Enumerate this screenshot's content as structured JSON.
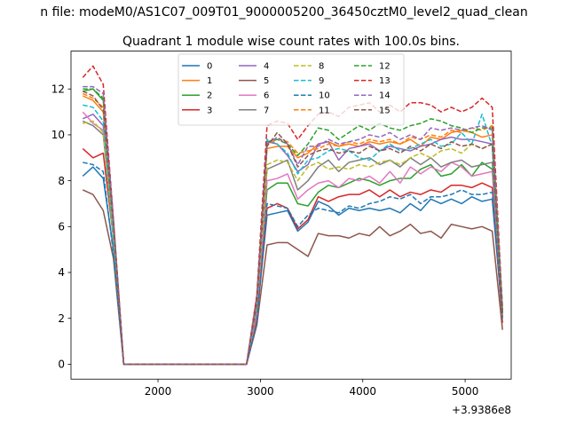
{
  "chart_data": {
    "type": "line",
    "suptitle": "n file: modeM0/AS1C07_009T01_9000005200_36450cztM0_level2_quad_clean",
    "title": "Quadrant 1 module wise count rates with 100.0s bins.",
    "xlabel": "",
    "ylabel": "",
    "x_offset_label": "+3.9386e8",
    "xlim": [
      1150,
      5450
    ],
    "ylim": [
      -0.65,
      13.65
    ],
    "xticks": [
      2000,
      3000,
      4000,
      5000
    ],
    "yticks": [
      0,
      2,
      4,
      6,
      8,
      10,
      12
    ],
    "grid": false,
    "legend": {
      "placement": "upper center",
      "columns": 4
    },
    "x": [
      1265,
      1365,
      1465,
      1565,
      1665,
      1765,
      1865,
      1965,
      2065,
      2165,
      2265,
      2365,
      2465,
      2565,
      2665,
      2765,
      2865,
      2965,
      3065,
      3165,
      3265,
      3365,
      3465,
      3565,
      3665,
      3765,
      3865,
      3965,
      4065,
      4165,
      4265,
      4365,
      4465,
      4565,
      4665,
      4765,
      4865,
      4965,
      5065,
      5165,
      5265,
      5365
    ],
    "series": [
      {
        "name": "0",
        "color": "#1f77b4",
        "dash": "solid",
        "values": [
          8.2,
          8.6,
          8.1,
          5.0,
          0,
          0,
          0,
          0,
          0,
          0,
          0,
          0,
          0,
          0,
          0,
          0,
          0,
          2.0,
          6.5,
          6.6,
          6.7,
          5.8,
          6.2,
          7.1,
          6.9,
          6.5,
          6.8,
          6.7,
          6.8,
          6.7,
          6.8,
          6.6,
          7.0,
          6.7,
          7.2,
          7.0,
          7.2,
          7.0,
          7.3,
          7.1,
          7.2,
          2.0
        ]
      },
      {
        "name": "1",
        "color": "#ff7f0e",
        "dash": "solid",
        "values": [
          11.7,
          11.5,
          11.0,
          6.2,
          0,
          0,
          0,
          0,
          0,
          0,
          0,
          0,
          0,
          0,
          0,
          0,
          0,
          3.0,
          9.4,
          9.5,
          9.5,
          9.0,
          9.2,
          9.6,
          9.7,
          9.5,
          9.6,
          9.5,
          9.7,
          9.6,
          9.7,
          9.6,
          9.8,
          9.5,
          9.9,
          9.8,
          10.1,
          10.2,
          10.1,
          9.9,
          10.0,
          2.2
        ]
      },
      {
        "name": "2",
        "color": "#2ca02c",
        "dash": "solid",
        "values": [
          11.9,
          12.0,
          11.5,
          6.0,
          0,
          0,
          0,
          0,
          0,
          0,
          0,
          0,
          0,
          0,
          0,
          0,
          0,
          2.5,
          7.6,
          7.9,
          7.9,
          7.0,
          6.9,
          7.5,
          7.8,
          7.7,
          7.9,
          8.1,
          8.0,
          7.8,
          8.0,
          8.1,
          8.1,
          8.5,
          8.7,
          8.2,
          8.3,
          8.7,
          8.2,
          8.8,
          8.5,
          2.3
        ]
      },
      {
        "name": "3",
        "color": "#d62728",
        "dash": "solid",
        "values": [
          9.4,
          9.0,
          9.2,
          5.5,
          0,
          0,
          0,
          0,
          0,
          0,
          0,
          0,
          0,
          0,
          0,
          0,
          0,
          2.0,
          6.8,
          7.0,
          6.8,
          5.9,
          6.3,
          7.3,
          7.1,
          7.3,
          7.4,
          7.4,
          7.6,
          7.3,
          7.6,
          7.3,
          7.5,
          7.4,
          7.6,
          7.5,
          7.8,
          7.8,
          7.7,
          7.9,
          7.7,
          1.8
        ]
      },
      {
        "name": "4",
        "color": "#9467bd",
        "dash": "solid",
        "values": [
          10.7,
          10.9,
          10.4,
          5.5,
          0,
          0,
          0,
          0,
          0,
          0,
          0,
          0,
          0,
          0,
          0,
          0,
          0,
          2.6,
          9.7,
          9.6,
          9.1,
          8.4,
          8.7,
          9.6,
          9.7,
          8.9,
          9.4,
          9.5,
          9.6,
          9.3,
          9.5,
          9.4,
          9.3,
          9.5,
          9.6,
          9.8,
          9.9,
          9.8,
          9.8,
          9.7,
          9.6,
          2.0
        ]
      },
      {
        "name": "5",
        "color": "#8c564b",
        "dash": "solid",
        "values": [
          7.6,
          7.4,
          6.7,
          4.6,
          0,
          0,
          0,
          0,
          0,
          0,
          0,
          0,
          0,
          0,
          0,
          0,
          0,
          1.7,
          5.2,
          5.3,
          5.3,
          5.0,
          4.7,
          5.7,
          5.6,
          5.6,
          5.5,
          5.7,
          5.6,
          6.0,
          5.6,
          5.8,
          6.1,
          5.7,
          5.8,
          5.5,
          6.1,
          6.0,
          5.9,
          6.0,
          5.8,
          1.5
        ]
      },
      {
        "name": "6",
        "color": "#e377c2",
        "dash": "solid",
        "values": [
          11.0,
          10.5,
          10.2,
          5.5,
          0,
          0,
          0,
          0,
          0,
          0,
          0,
          0,
          0,
          0,
          0,
          0,
          0,
          2.2,
          8.0,
          8.1,
          8.3,
          7.2,
          7.6,
          7.9,
          8.0,
          7.7,
          8.1,
          8.0,
          8.2,
          7.9,
          8.4,
          7.9,
          8.6,
          8.3,
          8.6,
          8.4,
          8.8,
          8.6,
          8.2,
          8.3,
          8.4,
          2.0
        ]
      },
      {
        "name": "7",
        "color": "#7f7f7f",
        "dash": "solid",
        "values": [
          10.6,
          10.4,
          10.0,
          5.6,
          0,
          0,
          0,
          0,
          0,
          0,
          0,
          0,
          0,
          0,
          0,
          0,
          0,
          2.4,
          8.5,
          8.7,
          8.9,
          7.6,
          8.0,
          8.6,
          8.9,
          8.4,
          8.8,
          8.9,
          9.0,
          8.7,
          8.9,
          8.6,
          9.0,
          8.7,
          9.0,
          8.6,
          8.8,
          8.9,
          8.6,
          8.7,
          8.8,
          2.1
        ]
      },
      {
        "name": "8",
        "color": "#bcbd22",
        "dash": "dashed",
        "values": [
          10.5,
          10.6,
          10.1,
          5.4,
          0,
          0,
          0,
          0,
          0,
          0,
          0,
          0,
          0,
          0,
          0,
          0,
          0,
          2.5,
          8.7,
          8.9,
          8.8,
          8.0,
          8.6,
          8.8,
          8.5,
          8.6,
          8.5,
          8.7,
          8.6,
          8.8,
          8.9,
          8.7,
          9.0,
          9.2,
          9.0,
          9.3,
          9.4,
          9.2,
          9.6,
          9.4,
          9.6,
          2.0
        ]
      },
      {
        "name": "9",
        "color": "#17becf",
        "dash": "dashed",
        "values": [
          11.3,
          11.2,
          10.6,
          5.6,
          0,
          0,
          0,
          0,
          0,
          0,
          0,
          0,
          0,
          0,
          0,
          0,
          0,
          2.6,
          9.8,
          9.6,
          9.2,
          8.3,
          8.9,
          9.0,
          9.3,
          9.4,
          9.3,
          9.0,
          8.9,
          9.3,
          9.6,
          9.3,
          9.4,
          9.6,
          9.8,
          9.5,
          9.6,
          10.1,
          9.6,
          10.9,
          9.5,
          2.2
        ]
      },
      {
        "name": "10",
        "color": "#1f77b4",
        "dash": "dashed",
        "values": [
          8.8,
          8.7,
          8.4,
          4.8,
          0,
          0,
          0,
          0,
          0,
          0,
          0,
          0,
          0,
          0,
          0,
          0,
          0,
          1.8,
          7.0,
          6.9,
          6.8,
          6.0,
          6.5,
          6.8,
          6.7,
          6.6,
          6.9,
          6.8,
          7.0,
          7.1,
          7.3,
          7.2,
          7.4,
          7.0,
          7.3,
          7.3,
          7.4,
          7.6,
          7.4,
          7.4,
          7.5,
          2.0
        ]
      },
      {
        "name": "11",
        "color": "#ff7f0e",
        "dash": "dashed",
        "values": [
          11.8,
          11.6,
          11.2,
          6.0,
          0,
          0,
          0,
          0,
          0,
          0,
          0,
          0,
          0,
          0,
          0,
          0,
          0,
          2.8,
          9.6,
          9.8,
          9.7,
          9.2,
          9.3,
          9.4,
          9.6,
          9.5,
          9.7,
          9.6,
          9.8,
          9.7,
          9.8,
          9.6,
          9.9,
          9.8,
          10.0,
          9.9,
          10.2,
          10.1,
          10.3,
          10.2,
          10.4,
          2.3
        ]
      },
      {
        "name": "12",
        "color": "#2ca02c",
        "dash": "dashed",
        "values": [
          12.0,
          12.0,
          11.6,
          6.2,
          0,
          0,
          0,
          0,
          0,
          0,
          0,
          0,
          0,
          0,
          0,
          0,
          0,
          2.8,
          9.7,
          9.8,
          9.6,
          9.1,
          9.6,
          10.3,
          10.2,
          9.8,
          10.1,
          10.4,
          10.2,
          10.5,
          10.3,
          10.2,
          10.4,
          10.5,
          10.7,
          10.6,
          10.4,
          10.3,
          10.1,
          10.3,
          10.3,
          2.2
        ]
      },
      {
        "name": "13",
        "color": "#d62728",
        "dash": "dashed",
        "values": [
          12.5,
          13.0,
          12.2,
          6.3,
          0,
          0,
          0,
          0,
          0,
          0,
          0,
          0,
          0,
          0,
          0,
          0,
          0,
          3.0,
          10.4,
          10.6,
          10.5,
          9.8,
          10.4,
          10.9,
          11.0,
          10.8,
          11.2,
          11.3,
          11.4,
          11.0,
          11.3,
          11.0,
          11.4,
          11.4,
          11.3,
          11.0,
          11.2,
          11.0,
          11.2,
          11.6,
          11.2,
          2.4
        ]
      },
      {
        "name": "14",
        "color": "#9467bd",
        "dash": "dashed",
        "values": [
          12.1,
          12.1,
          11.8,
          6.3,
          0,
          0,
          0,
          0,
          0,
          0,
          0,
          0,
          0,
          0,
          0,
          0,
          0,
          2.9,
          9.6,
          9.9,
          9.6,
          8.7,
          9.5,
          9.5,
          9.8,
          9.6,
          9.7,
          9.8,
          10.0,
          9.9,
          10.1,
          9.8,
          10.0,
          9.8,
          10.3,
          10.2,
          10.3,
          10.2,
          10.3,
          10.4,
          10.2,
          2.5
        ]
      },
      {
        "name": "15",
        "color": "#8c564b",
        "dash": "dashed",
        "values": [
          11.9,
          11.7,
          11.1,
          6.1,
          0,
          0,
          0,
          0,
          0,
          0,
          0,
          0,
          0,
          0,
          0,
          0,
          0,
          2.7,
          9.5,
          10.1,
          9.6,
          8.6,
          9.1,
          9.3,
          9.4,
          9.2,
          9.3,
          9.2,
          9.5,
          9.3,
          9.4,
          9.2,
          9.5,
          9.3,
          9.6,
          9.4,
          9.7,
          9.5,
          9.6,
          9.4,
          9.6,
          2.1
        ]
      }
    ]
  }
}
